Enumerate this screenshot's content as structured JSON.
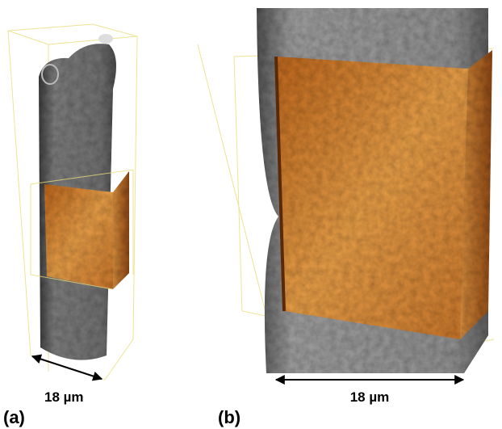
{
  "panels": [
    {
      "label": "(a)",
      "scale_bar": "18 µm"
    },
    {
      "label": "(b)",
      "scale_bar": "18 µm"
    }
  ]
}
